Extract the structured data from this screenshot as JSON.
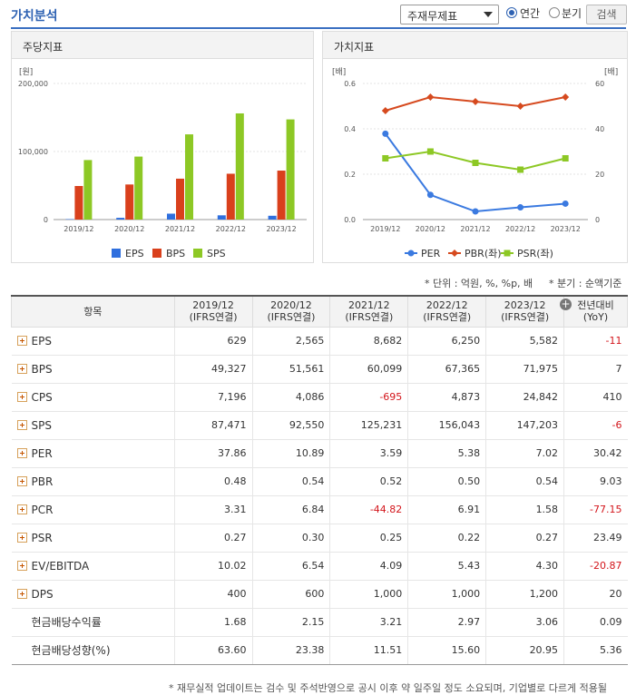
{
  "header": {
    "title": "가치분석",
    "select_value": "주재무제표",
    "radio_annual": "연간",
    "radio_quarter": "분기",
    "search_label": "검색"
  },
  "colors": {
    "accent": "#2e62b3",
    "eps": "#2f6fde",
    "bps": "#d9401c",
    "sps": "#8dc825",
    "per": "#3b7ae0",
    "pbr": "#d64a1f",
    "psr": "#8dc825"
  },
  "left_chart": {
    "title": "주당지표",
    "unit_label": "[원]",
    "chart_data": {
      "type": "bar",
      "categories": [
        "2019/12",
        "2020/12",
        "2021/12",
        "2022/12",
        "2023/12"
      ],
      "ylim": [
        0,
        200000
      ],
      "yticks": [
        "200,000",
        "100,000",
        "0"
      ],
      "series": [
        {
          "name": "EPS",
          "values": [
            629,
            2565,
            8682,
            6250,
            5582
          ]
        },
        {
          "name": "BPS",
          "values": [
            49327,
            51561,
            60099,
            67365,
            71975
          ]
        },
        {
          "name": "SPS",
          "values": [
            87471,
            92550,
            125231,
            156043,
            147203
          ]
        }
      ]
    }
  },
  "right_chart": {
    "title": "가치지표",
    "left_unit": "[배]",
    "right_unit": "[배]",
    "chart_data": {
      "type": "line",
      "categories": [
        "2019/12",
        "2020/12",
        "2021/12",
        "2022/12",
        "2023/12"
      ],
      "ylim_left": [
        0,
        0.6
      ],
      "ylim_right": [
        0,
        60
      ],
      "yticks_left": [
        "0.6",
        "0.4",
        "0.2",
        "0.0"
      ],
      "yticks_right": [
        "60",
        "40",
        "20",
        "0"
      ],
      "series": [
        {
          "name": "PER",
          "axis": "right",
          "values": [
            37.86,
            10.89,
            3.59,
            5.38,
            7.02
          ]
        },
        {
          "name": "PBR(좌)",
          "axis": "left",
          "values": [
            0.48,
            0.54,
            0.52,
            0.5,
            0.54
          ]
        },
        {
          "name": "PSR(좌)",
          "axis": "left",
          "values": [
            0.27,
            0.3,
            0.25,
            0.22,
            0.27
          ]
        }
      ]
    }
  },
  "notes": {
    "unit": "* 단위 : 억원, %, %p, 배",
    "quarter": "* 분기 : 순액기준"
  },
  "table": {
    "item_header": "항목",
    "columns": [
      {
        "line1": "2019/12",
        "line2": "(IFRS연결)"
      },
      {
        "line1": "2020/12",
        "line2": "(IFRS연결)"
      },
      {
        "line1": "2021/12",
        "line2": "(IFRS연결)"
      },
      {
        "line1": "2022/12",
        "line2": "(IFRS연결)"
      },
      {
        "line1": "2023/12",
        "line2": "(IFRS연결)"
      }
    ],
    "yoy_line1": "전년대비",
    "yoy_line2": "(YoY)",
    "rows": [
      {
        "label": "EPS",
        "expand": true,
        "values": [
          "629",
          "2,565",
          "8,682",
          "6,250",
          "5,582"
        ],
        "yoy": "-11"
      },
      {
        "label": "BPS",
        "expand": true,
        "values": [
          "49,327",
          "51,561",
          "60,099",
          "67,365",
          "71,975"
        ],
        "yoy": "7"
      },
      {
        "label": "CPS",
        "expand": true,
        "values": [
          "7,196",
          "4,086",
          "-695",
          "4,873",
          "24,842"
        ],
        "yoy": "410"
      },
      {
        "label": "SPS",
        "expand": true,
        "values": [
          "87,471",
          "92,550",
          "125,231",
          "156,043",
          "147,203"
        ],
        "yoy": "-6"
      },
      {
        "label": "PER",
        "expand": true,
        "values": [
          "37.86",
          "10.89",
          "3.59",
          "5.38",
          "7.02"
        ],
        "yoy": "30.42"
      },
      {
        "label": "PBR",
        "expand": true,
        "values": [
          "0.48",
          "0.54",
          "0.52",
          "0.50",
          "0.54"
        ],
        "yoy": "9.03"
      },
      {
        "label": "PCR",
        "expand": true,
        "values": [
          "3.31",
          "6.84",
          "-44.82",
          "6.91",
          "1.58"
        ],
        "yoy": "-77.15"
      },
      {
        "label": "PSR",
        "expand": true,
        "values": [
          "0.27",
          "0.30",
          "0.25",
          "0.22",
          "0.27"
        ],
        "yoy": "23.49"
      },
      {
        "label": "EV/EBITDA",
        "expand": true,
        "values": [
          "10.02",
          "6.54",
          "4.09",
          "5.43",
          "4.30"
        ],
        "yoy": "-20.87"
      },
      {
        "label": "DPS",
        "expand": true,
        "values": [
          "400",
          "600",
          "1,000",
          "1,000",
          "1,200"
        ],
        "yoy": "20"
      },
      {
        "label": "현금배당수익률",
        "expand": false,
        "values": [
          "1.68",
          "2.15",
          "3.21",
          "2.97",
          "3.06"
        ],
        "yoy": "0.09"
      },
      {
        "label": "현금배당성향(%)",
        "expand": false,
        "values": [
          "63.60",
          "23.38",
          "11.51",
          "15.60",
          "20.95"
        ],
        "yoy": "5.36"
      }
    ]
  },
  "footnote": "* 재무실적 업데이트는 검수 및 주석반영으로 공시 이후 약 일주일 정도 소요되며, 기업별로 다르게 적용될"
}
